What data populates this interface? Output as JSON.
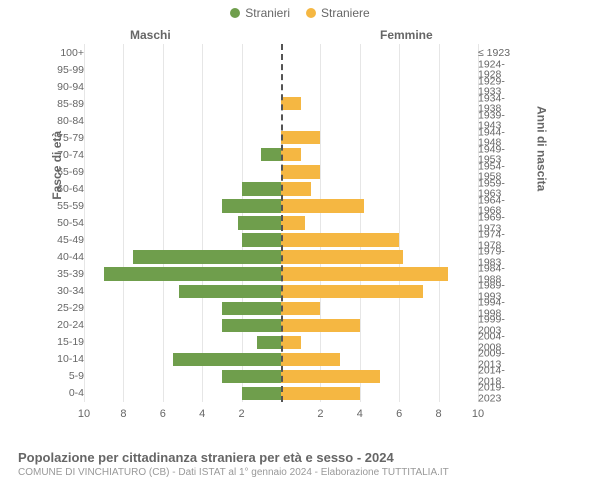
{
  "legend": {
    "male": {
      "label": "Stranieri",
      "color": "#6f9e4c"
    },
    "female": {
      "label": "Straniere",
      "color": "#f5b742"
    }
  },
  "headers": {
    "male": "Maschi",
    "female": "Femmine"
  },
  "axis": {
    "left_title": "Fasce di età",
    "right_title": "Anni di nascita",
    "xmax": 10,
    "xtick_step": 2,
    "xticks_labels_left": [
      "10",
      "8",
      "6",
      "4",
      "2"
    ],
    "xticks_labels_right": [
      "2",
      "4",
      "6",
      "8",
      "10"
    ]
  },
  "style": {
    "bar_color_male": "#6f9e4c",
    "bar_color_female": "#f5b742",
    "grid_color": "#e6e6e6",
    "centerline_color": "#545454",
    "background": "#ffffff",
    "row_height_ratio": 0.78,
    "font_size_tick": 11,
    "font_size_label": 10.5
  },
  "rows": [
    {
      "age": "100+",
      "birth": "≤ 1923",
      "m": 0.0,
      "f": 0.0
    },
    {
      "age": "95-99",
      "birth": "1924-1928",
      "m": 0.0,
      "f": 0.0
    },
    {
      "age": "90-94",
      "birth": "1929-1933",
      "m": 0.0,
      "f": 0.0
    },
    {
      "age": "85-89",
      "birth": "1934-1938",
      "m": 0.0,
      "f": 1.0
    },
    {
      "age": "80-84",
      "birth": "1939-1943",
      "m": 0.0,
      "f": 0.0
    },
    {
      "age": "75-79",
      "birth": "1944-1948",
      "m": 0.0,
      "f": 2.0
    },
    {
      "age": "70-74",
      "birth": "1949-1953",
      "m": 1.0,
      "f": 1.0
    },
    {
      "age": "65-69",
      "birth": "1954-1958",
      "m": 0.0,
      "f": 2.0
    },
    {
      "age": "60-64",
      "birth": "1959-1963",
      "m": 2.0,
      "f": 1.5
    },
    {
      "age": "55-59",
      "birth": "1964-1968",
      "m": 3.0,
      "f": 4.2
    },
    {
      "age": "50-54",
      "birth": "1969-1973",
      "m": 2.2,
      "f": 1.2
    },
    {
      "age": "45-49",
      "birth": "1974-1978",
      "m": 2.0,
      "f": 6.0
    },
    {
      "age": "40-44",
      "birth": "1979-1983",
      "m": 7.5,
      "f": 6.2
    },
    {
      "age": "35-39",
      "birth": "1984-1988",
      "m": 9.0,
      "f": 8.5
    },
    {
      "age": "30-34",
      "birth": "1989-1993",
      "m": 5.2,
      "f": 7.2
    },
    {
      "age": "25-29",
      "birth": "1994-1998",
      "m": 3.0,
      "f": 2.0
    },
    {
      "age": "20-24",
      "birth": "1999-2003",
      "m": 3.0,
      "f": 4.0
    },
    {
      "age": "15-19",
      "birth": "2004-2008",
      "m": 1.2,
      "f": 1.0
    },
    {
      "age": "10-14",
      "birth": "2009-2013",
      "m": 5.5,
      "f": 3.0
    },
    {
      "age": "5-9",
      "birth": "2014-2018",
      "m": 3.0,
      "f": 5.0
    },
    {
      "age": "0-4",
      "birth": "2019-2023",
      "m": 2.0,
      "f": 4.0
    }
  ],
  "footer": {
    "title": "Popolazione per cittadinanza straniera per età e sesso - 2024",
    "subtitle": "COMUNE DI VINCHIATURO (CB) - Dati ISTAT al 1° gennaio 2024 - Elaborazione TUTTITALIA.IT"
  }
}
